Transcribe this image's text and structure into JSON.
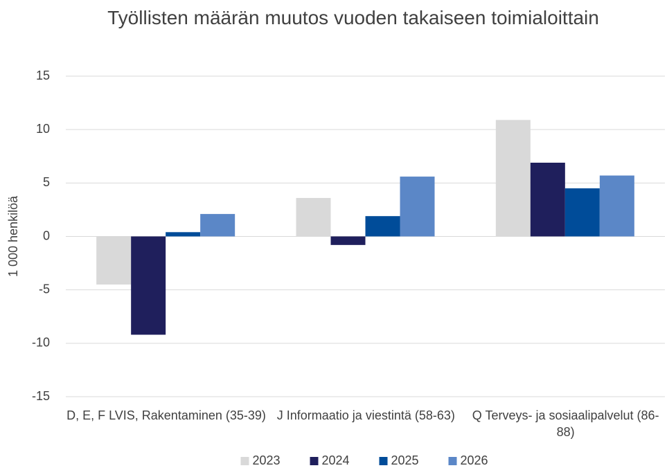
{
  "chart_data": {
    "type": "bar",
    "title": "Työllisten määrän muutos vuoden takaiseen toimialoittain",
    "ylabel": "1 000 henkilöä",
    "categories": [
      "D, E, F LVIS, Rakentaminen (35-39)",
      "J Informaatio ja viestintä (58-63)",
      "Q Terveys- ja sosiaalipalvelut (86-88)"
    ],
    "series": [
      {
        "name": "2023",
        "color": "#d9d9d9",
        "values": [
          -4.5,
          3.6,
          10.9
        ]
      },
      {
        "name": "2024",
        "color": "#1f1f5c",
        "values": [
          -9.2,
          -0.8,
          6.9
        ]
      },
      {
        "name": "2025",
        "color": "#004c99",
        "values": [
          0.4,
          1.9,
          4.5
        ]
      },
      {
        "name": "2026",
        "color": "#5b87c7",
        "values": [
          2.1,
          5.6,
          5.7
        ]
      }
    ],
    "ylim": [
      -15,
      15
    ],
    "yticks": [
      -15,
      -10,
      -5,
      0,
      5,
      10,
      15
    ],
    "grid": true,
    "legend": "bottom"
  }
}
